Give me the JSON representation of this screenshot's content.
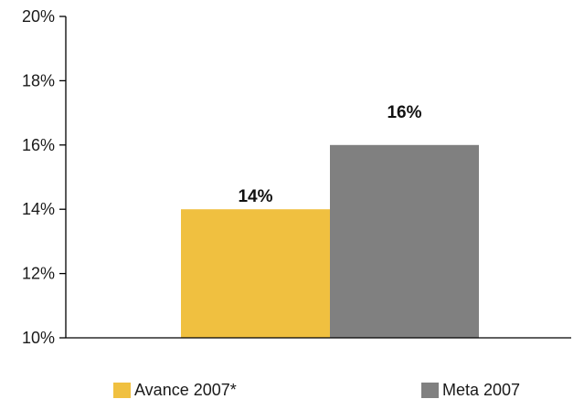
{
  "chart_data": {
    "type": "bar",
    "categories": [
      "Avance 2007*",
      "Meta 2007"
    ],
    "values": [
      14,
      16
    ],
    "data_labels": [
      "14%",
      "16%"
    ],
    "colors": [
      "#F0C040",
      "#808080"
    ],
    "ylim": [
      10,
      20
    ],
    "yticks": [
      10,
      12,
      14,
      16,
      18,
      20
    ],
    "ytick_labels": [
      "10%",
      "12%",
      "14%",
      "16%",
      "18%",
      "20%"
    ],
    "grid": false,
    "legend": {
      "position": "bottom",
      "entries": [
        {
          "label": "Avance 2007*",
          "color": "#F0C040"
        },
        {
          "label": "Meta 2007",
          "color": "#808080"
        }
      ]
    },
    "title": "",
    "xlabel": "",
    "ylabel": ""
  }
}
